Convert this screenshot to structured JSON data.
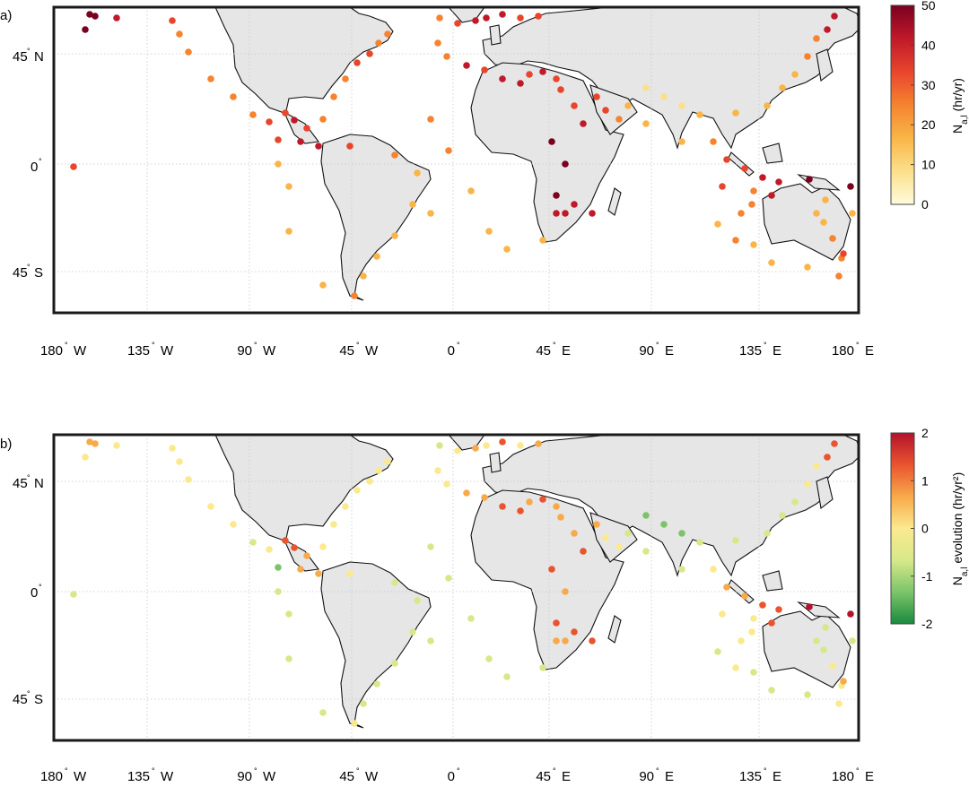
{
  "panels": [
    {
      "label": "a)",
      "lat_ticks": [
        "45",
        "N",
        "0",
        "",
        "45",
        "S"
      ],
      "lat_labels": [
        {
          "deg": "45",
          "hemi": "N"
        },
        {
          "deg": "0",
          "hemi": ""
        },
        {
          "deg": "45",
          "hemi": "S"
        }
      ],
      "lon_labels": [
        {
          "deg": "180",
          "hemi": "W"
        },
        {
          "deg": "135",
          "hemi": "W"
        },
        {
          "deg": "90",
          "hemi": "W"
        },
        {
          "deg": "45",
          "hemi": "W"
        },
        {
          "deg": "0",
          "hemi": ""
        },
        {
          "deg": "45",
          "hemi": "E"
        },
        {
          "deg": "90",
          "hemi": "E"
        },
        {
          "deg": "135",
          "hemi": "E"
        },
        {
          "deg": "180",
          "hemi": "E"
        }
      ],
      "colorbar": {
        "ticks": [
          "50",
          "40",
          "30",
          "20",
          "10",
          "0"
        ],
        "label_main": "N",
        "label_sub": "a,l",
        "label_rest": " (hr/yr)",
        "colors": [
          "#7a0020",
          "#c0192a",
          "#e8452d",
          "#f5832f",
          "#f9b548",
          "#fbe08a",
          "#fffbdc"
        ]
      }
    },
    {
      "label": "b)",
      "lat_labels": [
        {
          "deg": "45",
          "hemi": "N"
        },
        {
          "deg": "0",
          "hemi": ""
        },
        {
          "deg": "45",
          "hemi": "S"
        }
      ],
      "lon_labels": [
        {
          "deg": "180",
          "hemi": "W"
        },
        {
          "deg": "135",
          "hemi": "W"
        },
        {
          "deg": "90",
          "hemi": "W"
        },
        {
          "deg": "45",
          "hemi": "W"
        },
        {
          "deg": "0",
          "hemi": ""
        },
        {
          "deg": "45",
          "hemi": "E"
        },
        {
          "deg": "90",
          "hemi": "E"
        },
        {
          "deg": "135",
          "hemi": "E"
        },
        {
          "deg": "180",
          "hemi": "E"
        }
      ],
      "colorbar": {
        "ticks": [
          "2",
          "1",
          "0",
          "-1",
          "-2"
        ],
        "label_main": "N",
        "label_sub": "a,l",
        "label_rest": " evolution (hr/yr²)",
        "colors": [
          "#b5122b",
          "#e9542f",
          "#f8a94a",
          "#fbe98e",
          "#d6e98a",
          "#7cc46a",
          "#1a8a3e"
        ]
      }
    }
  ],
  "map_style": {
    "land": "#e6e6e6",
    "coast": "#111111",
    "ocean": "#ffffff",
    "grid": "#c8c8c8"
  }
}
